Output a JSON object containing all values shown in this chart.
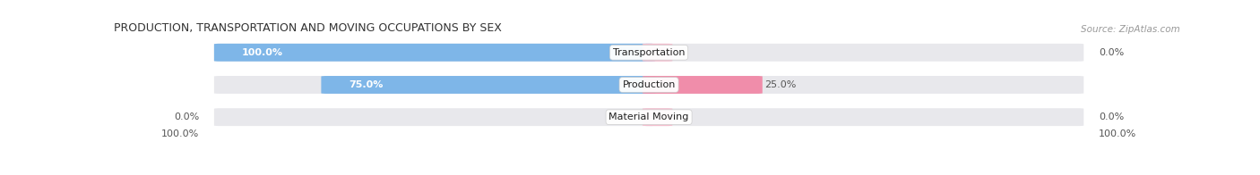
{
  "title": "PRODUCTION, TRANSPORTATION AND MOVING OCCUPATIONS BY SEX",
  "source": "Source: ZipAtlas.com",
  "categories": [
    "Transportation",
    "Production",
    "Material Moving"
  ],
  "male_values": [
    100.0,
    75.0,
    0.0
  ],
  "female_values": [
    0.0,
    25.0,
    0.0
  ],
  "male_color": "#7EB6E8",
  "female_color": "#F08DAA",
  "female_light_color": "#F4BECE",
  "bar_bg_color": "#E8E8EC",
  "bar_height": 0.52,
  "figsize": [
    14.06,
    1.96
  ],
  "dpi": 100,
  "title_fontsize": 9,
  "cat_label_fontsize": 8,
  "pct_fontsize": 8,
  "source_fontsize": 7.5,
  "legend_male_color": "#7EB6E8",
  "legend_female_color": "#F08DAA"
}
